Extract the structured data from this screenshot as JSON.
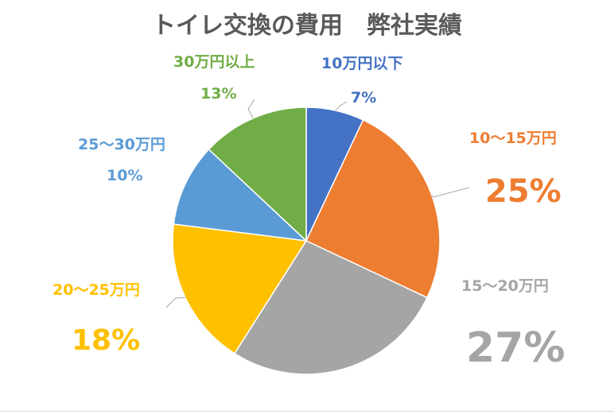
{
  "chart_data": {
    "type": "pie",
    "title": "トイレ交換の費用　弊社実績",
    "slices": [
      {
        "label": "10万円以下",
        "value": 7,
        "value_text": "7%",
        "color": "#4472C4"
      },
      {
        "label": "10～15万円",
        "value": 25,
        "value_text": "25%",
        "color": "#ED7D31"
      },
      {
        "label": "15～20万円",
        "value": 27,
        "value_text": "27%",
        "color": "#A5A5A5"
      },
      {
        "label": "20～25万円",
        "value": 18,
        "value_text": "18%",
        "color": "#FFC000"
      },
      {
        "label": "25～30万円",
        "value": 10,
        "value_text": "10%",
        "color": "#5B9BD5"
      },
      {
        "label": "30万円以上",
        "value": 13,
        "value_text": "13%",
        "color": "#70AD47"
      }
    ]
  }
}
